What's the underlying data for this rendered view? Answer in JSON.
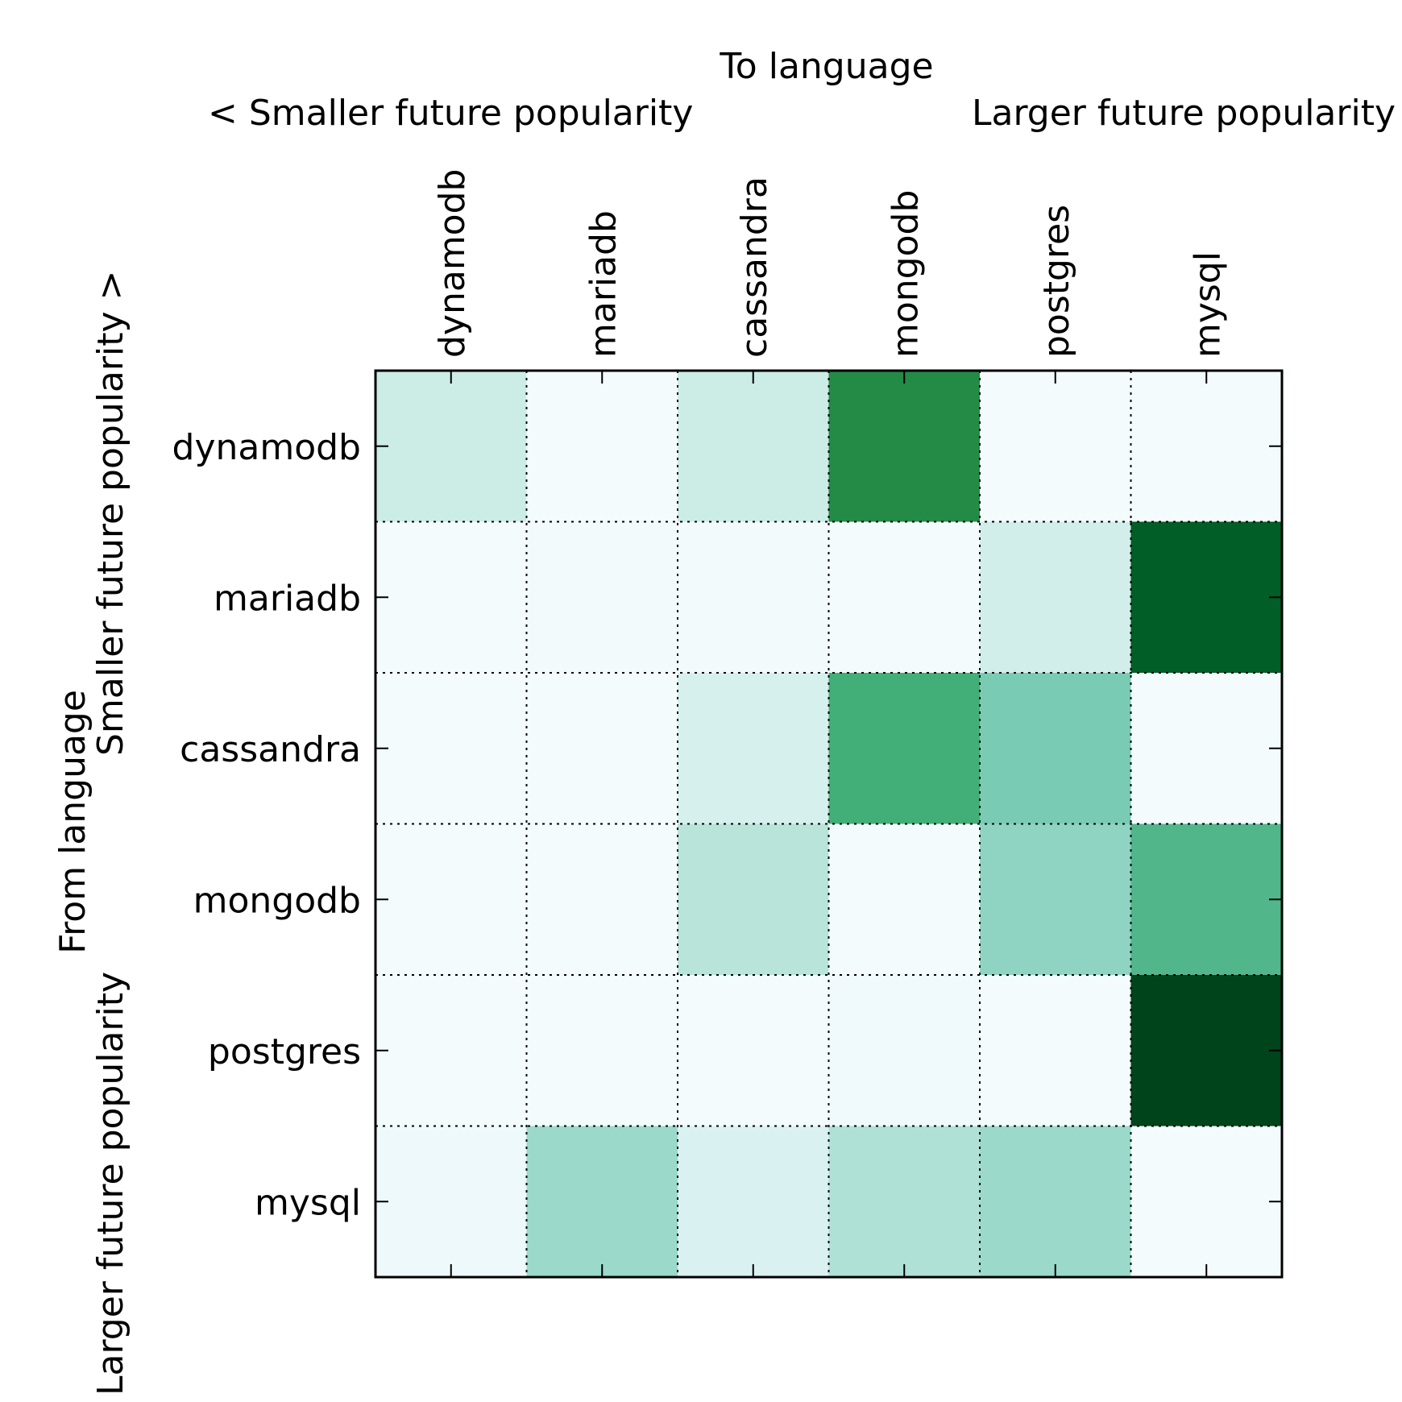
{
  "chart_data": {
    "type": "heatmap",
    "title": "To language",
    "top_left_note": "< Smaller future popularity",
    "top_right_note": "Larger future popularity",
    "ylabel": "From language",
    "left_upper_note": "Smaller future popularity >",
    "left_lower_note": "Larger future popularity",
    "columns": [
      "dynamodb",
      "mariadb",
      "cassandra",
      "mongodb",
      "postgres",
      "mysql"
    ],
    "rows": [
      "dynamodb",
      "mariadb",
      "cassandra",
      "mongodb",
      "postgres",
      "mysql"
    ],
    "values": [
      [
        0.25,
        0.02,
        0.25,
        0.75,
        0.02,
        0.02
      ],
      [
        0.02,
        0.03,
        0.03,
        0.02,
        0.22,
        0.92
      ],
      [
        0.02,
        0.02,
        0.2,
        0.62,
        0.45,
        0.02
      ],
      [
        0.02,
        0.02,
        0.3,
        0.02,
        0.4,
        0.57
      ],
      [
        0.02,
        0.02,
        0.02,
        0.05,
        0.02,
        1.0
      ],
      [
        0.06,
        0.37,
        0.18,
        0.32,
        0.37,
        0.02
      ]
    ],
    "value_range": [
      0,
      1
    ],
    "colormap": "BuGn",
    "colormap_low": "#f7fcfd",
    "colormap_high": "#00441b",
    "grid": true,
    "grid_style": "dotted",
    "axis_color": "#000000"
  }
}
